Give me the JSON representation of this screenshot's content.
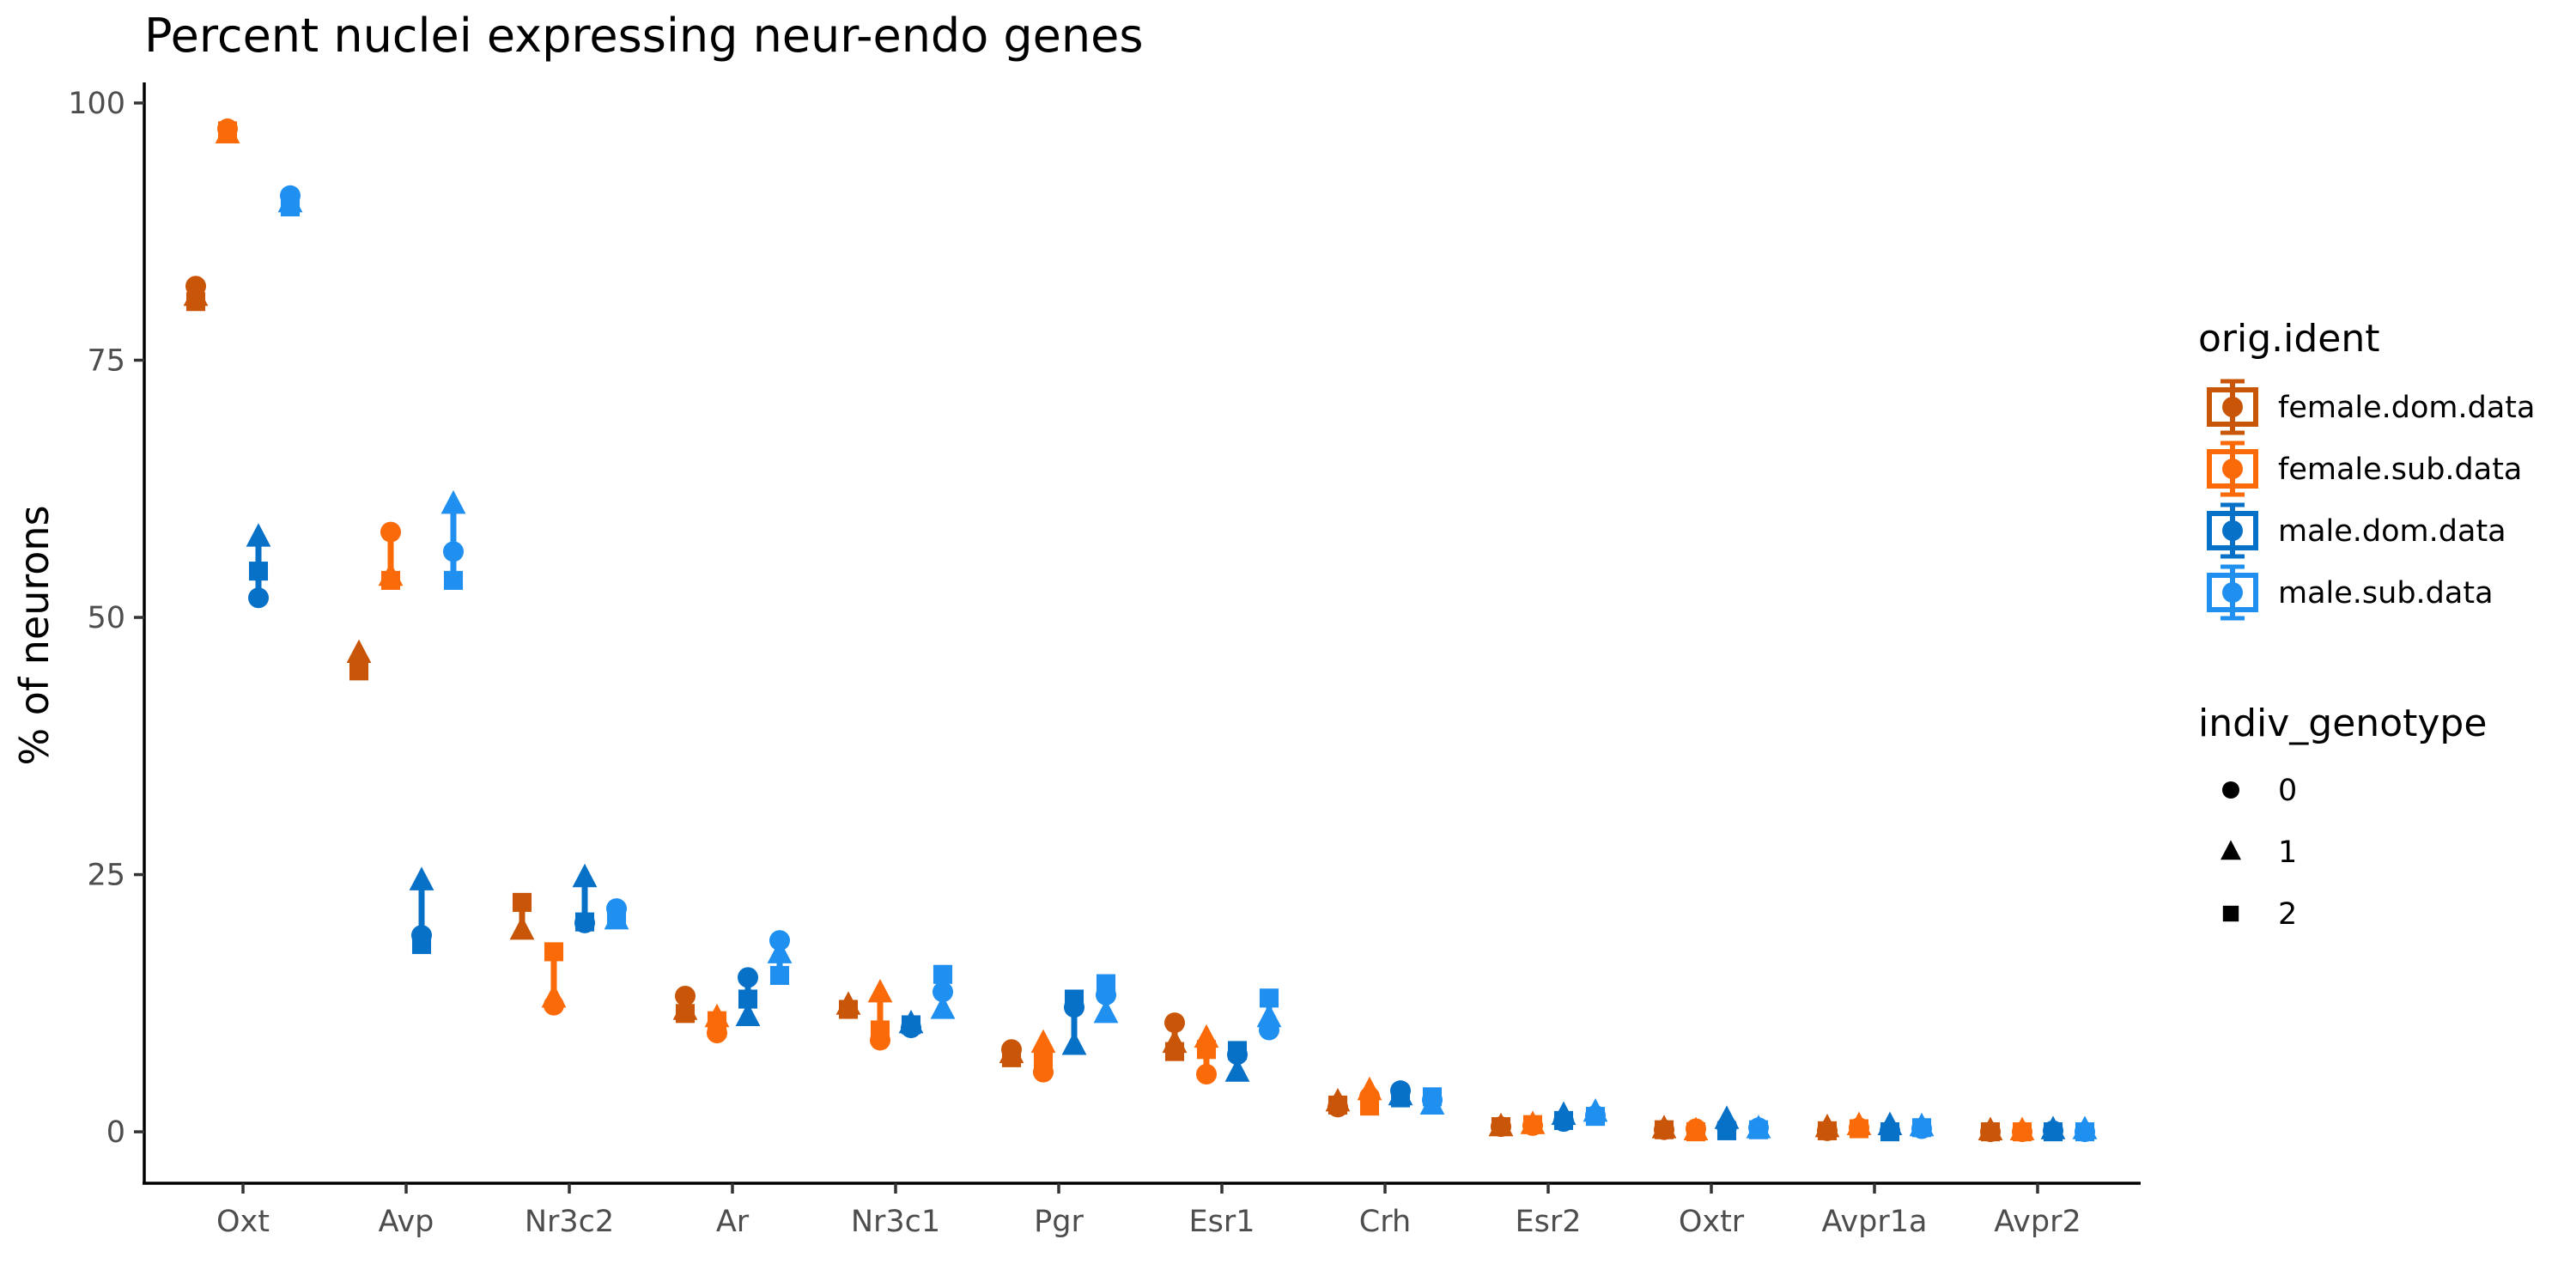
{
  "chart_data": {
    "type": "scatter",
    "title": "Percent nuclei expressing neur-endo genes",
    "xlabel": "",
    "ylabel": "% of neurons",
    "ylim": [
      -5,
      102
    ],
    "yticks": [
      0,
      25,
      50,
      75,
      100
    ],
    "grid": false,
    "legend_position": "right",
    "categories": [
      "Oxt",
      "Avp",
      "Nr3c2",
      "Ar",
      "Nr3c1",
      "Pgr",
      "Esr1",
      "Crh",
      "Esr2",
      "Oxtr",
      "Avpr1a",
      "Avpr2"
    ],
    "colors": {
      "female.dom.data": "#c95508",
      "female.sub.data": "#fb6a09",
      "male.dom.data": "#0770c7",
      "male.sub.data": "#1f8ff0"
    },
    "color_legend": {
      "title": "orig.ident",
      "items": [
        "female.dom.data",
        "female.sub.data",
        "male.dom.data",
        "male.sub.data"
      ]
    },
    "shape_legend": {
      "title": "indiv_genotype",
      "items": [
        {
          "label": "0",
          "shape": "circle"
        },
        {
          "label": "1",
          "shape": "triangle"
        },
        {
          "label": "2",
          "shape": "square"
        }
      ]
    },
    "series": [
      {
        "name": "female.dom.data",
        "points": [
          {
            "gene": "Oxt",
            "g0": 82.2,
            "g1": 81.2,
            "g2": 80.7
          },
          {
            "gene": "Avp",
            "g1": 46.5,
            "g2": 44.8
          },
          {
            "gene": "Nr3c2",
            "g1": 19.6,
            "g2": 22.3
          },
          {
            "gene": "Ar",
            "g0": 13.2,
            "g1": 11.8,
            "g2": 11.5
          },
          {
            "gene": "Nr3c1",
            "g1": 12.3,
            "g2": 11.9
          },
          {
            "gene": "Pgr",
            "g0": 8.0,
            "g1": 7.6,
            "g2": 7.2
          },
          {
            "gene": "Esr1",
            "g0": 10.6,
            "g1": 8.6,
            "g2": 7.8
          },
          {
            "gene": "Crh",
            "g0": 2.4,
            "g1": 2.9,
            "g2": 2.6
          },
          {
            "gene": "Esr2",
            "g0": 0.5,
            "g1": 0.5,
            "g2": 0.5
          },
          {
            "gene": "Oxtr",
            "g0": 0.2,
            "g1": 0.3,
            "g2": 0.2
          },
          {
            "gene": "Avpr1a",
            "g0": 0.1,
            "g1": 0.4,
            "g2": 0.1
          },
          {
            "gene": "Avpr2",
            "g0": 0.0,
            "g1": 0.1,
            "g2": 0.0
          }
        ]
      },
      {
        "name": "female.sub.data",
        "points": [
          {
            "gene": "Oxt",
            "g0": 97.5,
            "g1": 97.0,
            "g2": 97.3
          },
          {
            "gene": "Avp",
            "g0": 58.3,
            "g1": 54.0,
            "g2": 53.6
          },
          {
            "gene": "Nr3c2",
            "g0": 12.3,
            "g1": 13.0,
            "g2": 17.5
          },
          {
            "gene": "Ar",
            "g0": 9.6,
            "g1": 11.1,
            "g2": 10.8
          },
          {
            "gene": "Nr3c1",
            "g0": 8.9,
            "g1": 13.5,
            "g2": 9.9
          },
          {
            "gene": "Pgr",
            "g0": 5.8,
            "g1": 8.6,
            "g2": 7.0
          },
          {
            "gene": "Esr1",
            "g0": 5.6,
            "g1": 9.1,
            "g2": 8.0
          },
          {
            "gene": "Crh",
            "g0": 3.4,
            "g1": 4.0,
            "g2": 2.5
          },
          {
            "gene": "Esr2",
            "g0": 0.6,
            "g1": 0.7,
            "g2": 0.7
          },
          {
            "gene": "Oxtr",
            "g0": 0.3,
            "g1": 0.1,
            "g2": 0.0
          },
          {
            "gene": "Avpr1a",
            "g0": 0.4,
            "g1": 0.6,
            "g2": 0.3
          },
          {
            "gene": "Avpr2",
            "g0": 0.0,
            "g1": 0.1,
            "g2": 0.0
          }
        ]
      },
      {
        "name": "male.dom.data",
        "points": [
          {
            "gene": "Oxt",
            "g0": 51.9,
            "g1": 57.8,
            "g2": 54.5
          },
          {
            "gene": "Avp",
            "g0": 19.1,
            "g1": 24.4,
            "g2": 18.2
          },
          {
            "gene": "Nr3c2",
            "g0": 20.3,
            "g1": 24.7,
            "g2": 20.4
          },
          {
            "gene": "Ar",
            "g0": 15.0,
            "g1": 11.2,
            "g2": 12.9
          },
          {
            "gene": "Nr3c1",
            "g0": 10.1,
            "g1": 10.5,
            "g2": 10.4
          },
          {
            "gene": "Pgr",
            "g0": 12.1,
            "g1": 8.4,
            "g2": 12.9
          },
          {
            "gene": "Esr1",
            "g0": 7.5,
            "g1": 5.8,
            "g2": 7.9
          },
          {
            "gene": "Crh",
            "g0": 4.0,
            "g1": 3.5,
            "g2": 3.3
          },
          {
            "gene": "Esr2",
            "g0": 1.0,
            "g1": 1.6,
            "g2": 1.1
          },
          {
            "gene": "Oxtr",
            "g0": 0.5,
            "g1": 1.2,
            "g2": 0.1
          },
          {
            "gene": "Avpr1a",
            "g0": 0.1,
            "g1": 0.6,
            "g2": 0.0
          },
          {
            "gene": "Avpr2",
            "g0": 0.1,
            "g1": 0.2,
            "g2": 0.0
          }
        ]
      },
      {
        "name": "male.sub.data",
        "points": [
          {
            "gene": "Oxt",
            "g0": 91.0,
            "g1": 90.3,
            "g2": 89.9
          },
          {
            "gene": "Avp",
            "g0": 56.4,
            "g1": 61.0,
            "g2": 53.6
          },
          {
            "gene": "Nr3c2",
            "g0": 21.7,
            "g1": 20.6,
            "g2": 20.9
          },
          {
            "gene": "Ar",
            "g0": 18.6,
            "g1": 17.3,
            "g2": 15.2
          },
          {
            "gene": "Nr3c1",
            "g0": 13.6,
            "g1": 11.9,
            "g2": 15.3
          },
          {
            "gene": "Pgr",
            "g0": 13.3,
            "g1": 11.5,
            "g2": 14.4
          },
          {
            "gene": "Esr1",
            "g0": 9.9,
            "g1": 11.1,
            "g2": 13.0
          },
          {
            "gene": "Crh",
            "g0": 3.1,
            "g1": 2.6,
            "g2": 3.4
          },
          {
            "gene": "Esr2",
            "g0": 1.6,
            "g1": 1.9,
            "g2": 1.5
          },
          {
            "gene": "Oxtr",
            "g0": 0.4,
            "g1": 0.3,
            "g2": 0.2
          },
          {
            "gene": "Avpr1a",
            "g0": 0.3,
            "g1": 0.5,
            "g2": 0.4
          },
          {
            "gene": "Avpr2",
            "g0": 0.0,
            "g1": 0.2,
            "g2": 0.0
          }
        ]
      }
    ]
  }
}
